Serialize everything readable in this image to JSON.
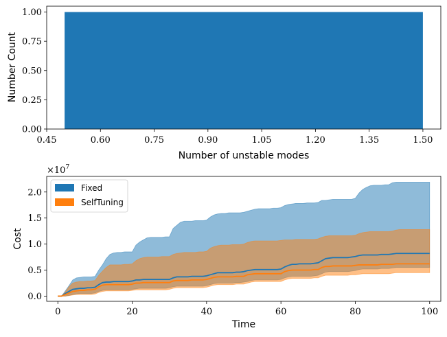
{
  "chart_data": [
    {
      "type": "bar",
      "xlabel": "Number of unstable modes",
      "ylabel": "Number Count",
      "bars": [
        {
          "x": 1.0,
          "width": 1.0,
          "value": 1.0
        }
      ],
      "xlim": [
        0.45,
        1.55
      ],
      "ylim": [
        0.0,
        1.05
      ],
      "xticks": [
        "0.45",
        "0.60",
        "0.75",
        "0.90",
        "1.05",
        "1.20",
        "1.35",
        "1.50"
      ],
      "xtick_values": [
        0.45,
        0.6,
        0.75,
        0.9,
        1.05,
        1.2,
        1.35,
        1.5
      ],
      "yticks": [
        "0.00",
        "0.25",
        "0.50",
        "0.75",
        "1.00"
      ],
      "ytick_values": [
        0,
        0.25,
        0.5,
        0.75,
        1.0
      ],
      "color": "#1f77b4",
      "grid": false
    },
    {
      "type": "area",
      "xlabel": "Time",
      "ylabel": "Cost",
      "scale_label": "×10",
      "scale_exp": "7",
      "xlim": [
        -3,
        103
      ],
      "ylim": [
        -0.1,
        2.3
      ],
      "xticks": [
        "0",
        "20",
        "40",
        "60",
        "80",
        "100"
      ],
      "xtick_values": [
        0,
        20,
        40,
        60,
        80,
        100
      ],
      "yticks": [
        "0.0",
        "0.5",
        "1.0",
        "1.5",
        "2.0"
      ],
      "ytick_values": [
        0,
        0.5,
        1.0,
        1.5,
        2.0
      ],
      "legend_position": "top-left",
      "grid": false,
      "x": [
        0,
        1,
        2,
        3,
        4,
        5,
        6,
        7,
        8,
        9,
        10,
        11,
        12,
        13,
        14,
        15,
        16,
        17,
        18,
        19,
        20,
        21,
        22,
        23,
        24,
        25,
        26,
        27,
        28,
        29,
        30,
        31,
        32,
        33,
        34,
        35,
        36,
        37,
        38,
        39,
        40,
        41,
        42,
        43,
        44,
        45,
        46,
        47,
        48,
        49,
        50,
        51,
        52,
        53,
        54,
        55,
        56,
        57,
        58,
        59,
        60,
        61,
        62,
        63,
        64,
        65,
        66,
        67,
        68,
        69,
        70,
        71,
        72,
        73,
        74,
        75,
        76,
        77,
        78,
        79,
        80,
        81,
        82,
        83,
        84,
        85,
        86,
        87,
        88,
        89,
        90,
        91,
        92,
        93,
        94,
        95,
        96,
        97,
        98,
        99,
        100
      ],
      "series": [
        {
          "name": "Fixed",
          "color": "#1f77b4",
          "mean": [
            0,
            0,
            0.05,
            0.09,
            0.13,
            0.14,
            0.15,
            0.15,
            0.16,
            0.16,
            0.17,
            0.22,
            0.26,
            0.27,
            0.27,
            0.28,
            0.28,
            0.28,
            0.28,
            0.28,
            0.29,
            0.31,
            0.31,
            0.32,
            0.32,
            0.32,
            0.32,
            0.32,
            0.32,
            0.32,
            0.32,
            0.35,
            0.37,
            0.37,
            0.37,
            0.37,
            0.38,
            0.38,
            0.38,
            0.38,
            0.39,
            0.41,
            0.43,
            0.45,
            0.45,
            0.45,
            0.45,
            0.45,
            0.46,
            0.46,
            0.47,
            0.49,
            0.5,
            0.51,
            0.51,
            0.51,
            0.51,
            0.51,
            0.51,
            0.51,
            0.52,
            0.56,
            0.59,
            0.61,
            0.61,
            0.62,
            0.62,
            0.62,
            0.62,
            0.63,
            0.64,
            0.68,
            0.72,
            0.73,
            0.74,
            0.74,
            0.74,
            0.74,
            0.74,
            0.75,
            0.76,
            0.78,
            0.79,
            0.79,
            0.79,
            0.79,
            0.79,
            0.8,
            0.8,
            0.8,
            0.81,
            0.82,
            0.82,
            0.82,
            0.82,
            0.82,
            0.82,
            0.82,
            0.82,
            0.82,
            0.82
          ],
          "upper": [
            0,
            0,
            0.1,
            0.2,
            0.31,
            0.35,
            0.36,
            0.37,
            0.37,
            0.37,
            0.38,
            0.5,
            0.6,
            0.72,
            0.8,
            0.83,
            0.84,
            0.84,
            0.85,
            0.85,
            0.85,
            0.98,
            1.04,
            1.08,
            1.12,
            1.13,
            1.13,
            1.13,
            1.13,
            1.14,
            1.14,
            1.3,
            1.36,
            1.42,
            1.44,
            1.44,
            1.44,
            1.45,
            1.45,
            1.45,
            1.46,
            1.52,
            1.56,
            1.58,
            1.59,
            1.59,
            1.6,
            1.6,
            1.6,
            1.6,
            1.61,
            1.63,
            1.65,
            1.67,
            1.68,
            1.68,
            1.68,
            1.68,
            1.69,
            1.69,
            1.7,
            1.74,
            1.76,
            1.77,
            1.78,
            1.78,
            1.78,
            1.79,
            1.79,
            1.79,
            1.8,
            1.84,
            1.84,
            1.85,
            1.86,
            1.86,
            1.86,
            1.86,
            1.86,
            1.86,
            1.88,
            1.98,
            2.05,
            2.09,
            2.12,
            2.13,
            2.13,
            2.13,
            2.14,
            2.14,
            2.18,
            2.19,
            2.19,
            2.19,
            2.19,
            2.19,
            2.19,
            2.19,
            2.19,
            2.19,
            2.19
          ],
          "lower": [
            0,
            0,
            0,
            0.01,
            0.03,
            0.04,
            0.05,
            0.05,
            0.05,
            0.05,
            0.06,
            0.09,
            0.11,
            0.12,
            0.12,
            0.12,
            0.12,
            0.12,
            0.12,
            0.12,
            0.13,
            0.14,
            0.15,
            0.15,
            0.15,
            0.15,
            0.15,
            0.15,
            0.15,
            0.15,
            0.16,
            0.18,
            0.19,
            0.19,
            0.19,
            0.19,
            0.19,
            0.19,
            0.19,
            0.19,
            0.2,
            0.22,
            0.24,
            0.25,
            0.25,
            0.25,
            0.25,
            0.25,
            0.26,
            0.26,
            0.27,
            0.28,
            0.3,
            0.31,
            0.31,
            0.31,
            0.31,
            0.31,
            0.31,
            0.31,
            0.32,
            0.35,
            0.37,
            0.38,
            0.38,
            0.38,
            0.38,
            0.38,
            0.38,
            0.39,
            0.4,
            0.43,
            0.46,
            0.47,
            0.47,
            0.47,
            0.47,
            0.47,
            0.47,
            0.48,
            0.49,
            0.51,
            0.52,
            0.52,
            0.52,
            0.52,
            0.52,
            0.53,
            0.53,
            0.53,
            0.54,
            0.55,
            0.55,
            0.55,
            0.55,
            0.55,
            0.55,
            0.55,
            0.55,
            0.55,
            0.55
          ]
        },
        {
          "name": "SelfTuning",
          "color": "#ff7f0e",
          "mean": [
            0,
            0,
            0.03,
            0.06,
            0.09,
            0.1,
            0.11,
            0.11,
            0.12,
            0.12,
            0.13,
            0.18,
            0.21,
            0.22,
            0.22,
            0.22,
            0.22,
            0.22,
            0.22,
            0.22,
            0.23,
            0.25,
            0.25,
            0.26,
            0.26,
            0.26,
            0.26,
            0.26,
            0.26,
            0.26,
            0.26,
            0.29,
            0.3,
            0.3,
            0.3,
            0.3,
            0.31,
            0.31,
            0.31,
            0.31,
            0.32,
            0.34,
            0.36,
            0.37,
            0.37,
            0.37,
            0.37,
            0.37,
            0.38,
            0.38,
            0.38,
            0.41,
            0.42,
            0.43,
            0.43,
            0.43,
            0.43,
            0.43,
            0.43,
            0.43,
            0.43,
            0.47,
            0.49,
            0.5,
            0.5,
            0.5,
            0.5,
            0.5,
            0.5,
            0.51,
            0.51,
            0.55,
            0.57,
            0.57,
            0.58,
            0.58,
            0.58,
            0.58,
            0.58,
            0.58,
            0.59,
            0.6,
            0.6,
            0.6,
            0.6,
            0.6,
            0.6,
            0.61,
            0.61,
            0.61,
            0.61,
            0.62,
            0.62,
            0.62,
            0.62,
            0.62,
            0.62,
            0.62,
            0.62,
            0.62,
            0.62
          ],
          "upper": [
            0,
            0,
            0.08,
            0.18,
            0.25,
            0.27,
            0.28,
            0.28,
            0.29,
            0.29,
            0.3,
            0.4,
            0.48,
            0.55,
            0.6,
            0.6,
            0.6,
            0.6,
            0.61,
            0.61,
            0.62,
            0.68,
            0.72,
            0.74,
            0.75,
            0.75,
            0.75,
            0.75,
            0.76,
            0.76,
            0.76,
            0.8,
            0.82,
            0.83,
            0.84,
            0.84,
            0.84,
            0.84,
            0.85,
            0.85,
            0.86,
            0.92,
            0.95,
            0.97,
            0.98,
            0.98,
            0.98,
            0.99,
            0.99,
            0.99,
            1.0,
            1.03,
            1.05,
            1.06,
            1.06,
            1.06,
            1.06,
            1.06,
            1.06,
            1.06,
            1.07,
            1.08,
            1.08,
            1.08,
            1.09,
            1.09,
            1.09,
            1.09,
            1.09,
            1.09,
            1.1,
            1.13,
            1.15,
            1.16,
            1.16,
            1.16,
            1.16,
            1.16,
            1.16,
            1.16,
            1.17,
            1.2,
            1.22,
            1.23,
            1.24,
            1.24,
            1.24,
            1.24,
            1.24,
            1.24,
            1.25,
            1.27,
            1.28,
            1.28,
            1.28,
            1.28,
            1.28,
            1.28,
            1.28,
            1.28,
            1.28
          ],
          "lower": [
            0,
            0,
            0,
            0.01,
            0.02,
            0.03,
            0.03,
            0.03,
            0.03,
            0.03,
            0.04,
            0.07,
            0.09,
            0.1,
            0.1,
            0.1,
            0.1,
            0.1,
            0.1,
            0.1,
            0.11,
            0.12,
            0.12,
            0.12,
            0.12,
            0.12,
            0.12,
            0.12,
            0.12,
            0.12,
            0.13,
            0.15,
            0.16,
            0.16,
            0.16,
            0.16,
            0.16,
            0.16,
            0.16,
            0.16,
            0.17,
            0.19,
            0.21,
            0.22,
            0.22,
            0.22,
            0.22,
            0.22,
            0.23,
            0.23,
            0.23,
            0.25,
            0.27,
            0.28,
            0.28,
            0.28,
            0.28,
            0.28,
            0.28,
            0.28,
            0.28,
            0.31,
            0.33,
            0.34,
            0.34,
            0.34,
            0.34,
            0.34,
            0.34,
            0.35,
            0.35,
            0.38,
            0.4,
            0.4,
            0.4,
            0.4,
            0.4,
            0.4,
            0.4,
            0.41,
            0.41,
            0.42,
            0.43,
            0.43,
            0.43,
            0.43,
            0.43,
            0.43,
            0.43,
            0.43,
            0.44,
            0.45,
            0.45,
            0.45,
            0.45,
            0.45,
            0.45,
            0.45,
            0.45,
            0.45,
            0.45
          ]
        }
      ]
    }
  ]
}
